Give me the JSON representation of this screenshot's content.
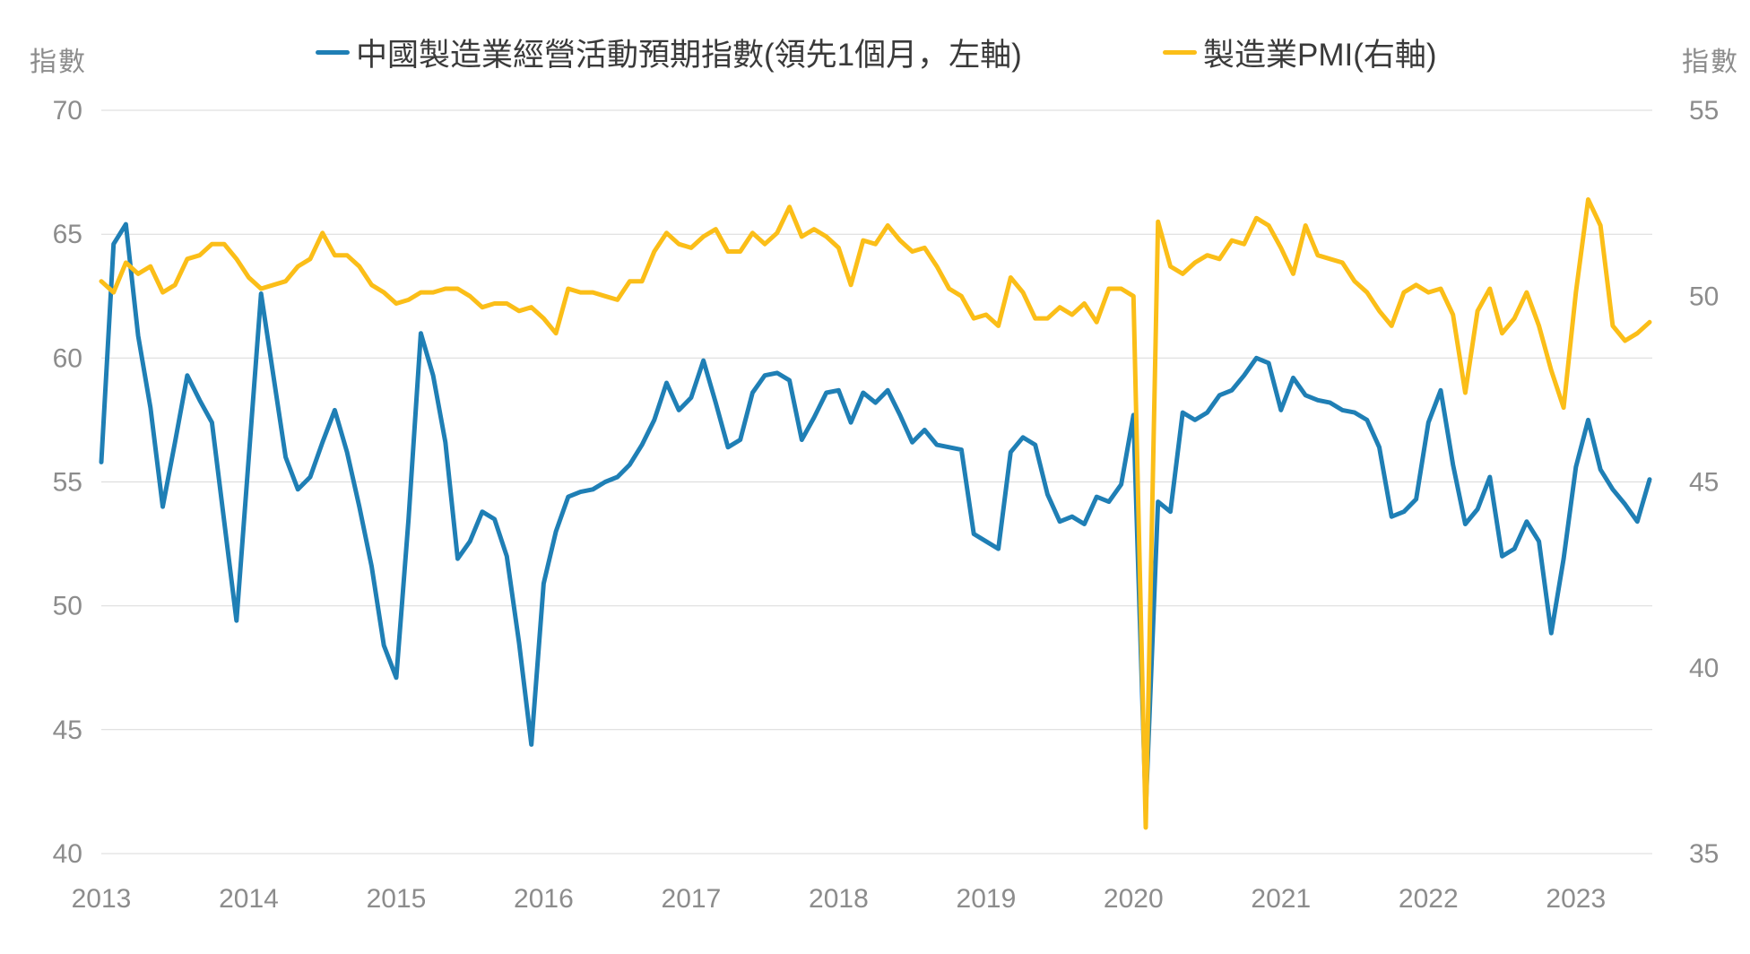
{
  "chart": {
    "left_axis_unit": "指數",
    "right_axis_unit": "指數"
  },
  "legend": [
    {
      "label": "中國製造業經營活動預期指數(領先1個月，左軸)",
      "color": "#1f7fb5"
    },
    {
      "label": "製造業PMI(右軸)",
      "color": "#fbbe18"
    }
  ],
  "colors": {
    "blue_line": "#1f7fb5",
    "yellow_line": "#fbbe18",
    "gridline": "#d9d9d9",
    "tick_text": "#8c8c8c",
    "legend_text": "#3a3a3a",
    "background": "#ffffff"
  },
  "chart_data": {
    "type": "line",
    "title": "",
    "xlabel": "",
    "x_tick_labels": [
      "2013",
      "2014",
      "2015",
      "2016",
      "2017",
      "2018",
      "2019",
      "2020",
      "2021",
      "2022",
      "2023"
    ],
    "x_frequency": "monthly",
    "x_range": [
      "2013-01",
      "2023-07"
    ],
    "grid": "horizontal",
    "legend_position": "top",
    "left_axis": {
      "unit": "指數",
      "min": 40,
      "max": 70,
      "step": 5,
      "ticks": [
        40,
        45,
        50,
        55,
        60,
        65,
        70
      ]
    },
    "right_axis": {
      "unit": "指數",
      "min": 35,
      "max": 55,
      "step": 5,
      "ticks": [
        35,
        40,
        45,
        50,
        55
      ]
    },
    "series": [
      {
        "name": "中國製造業經營活動預期指數(領先1個月，左軸)",
        "axis": "left",
        "color": "#1f7fb5",
        "values": [
          55.8,
          64.6,
          65.4,
          60.9,
          58.0,
          54.0,
          56.6,
          59.3,
          58.3,
          57.4,
          53.4,
          49.4,
          56.0,
          62.6,
          59.3,
          56.0,
          54.7,
          55.2,
          56.6,
          57.9,
          56.2,
          54.0,
          51.6,
          48.4,
          47.1,
          53.5,
          61.0,
          59.3,
          56.6,
          51.9,
          52.6,
          53.8,
          53.5,
          52.0,
          48.5,
          44.4,
          50.9,
          53.0,
          54.4,
          54.6,
          54.7,
          55.0,
          55.2,
          55.7,
          56.5,
          57.5,
          59.0,
          57.9,
          58.4,
          59.9,
          58.2,
          56.4,
          56.7,
          58.6,
          59.3,
          59.4,
          59.1,
          56.7,
          57.6,
          58.6,
          58.7,
          57.4,
          58.6,
          58.2,
          58.7,
          57.7,
          56.6,
          57.1,
          56.5,
          56.4,
          56.3,
          52.9,
          52.6,
          52.3,
          56.2,
          56.8,
          56.5,
          54.5,
          53.4,
          53.6,
          53.3,
          54.4,
          54.2,
          54.9,
          57.7,
          41.8,
          54.2,
          53.8,
          57.8,
          57.5,
          57.8,
          58.5,
          58.7,
          59.3,
          60.0,
          59.8,
          57.9,
          59.2,
          58.5,
          58.3,
          58.2,
          57.9,
          57.8,
          57.5,
          56.4,
          53.6,
          53.8,
          54.3,
          57.4,
          58.7,
          55.7,
          53.3,
          53.9,
          55.2,
          52.0,
          52.3,
          53.4,
          52.6,
          48.9,
          51.9,
          55.6,
          57.5,
          55.5,
          54.7,
          54.1,
          53.4,
          55.1
        ]
      },
      {
        "name": "製造業PMI(右軸)",
        "axis": "right",
        "color": "#fbbe18",
        "values": [
          50.4,
          50.1,
          50.9,
          50.6,
          50.8,
          50.1,
          50.3,
          51.0,
          51.1,
          51.4,
          51.4,
          51.0,
          50.5,
          50.2,
          50.3,
          50.4,
          50.8,
          51.0,
          51.7,
          51.1,
          51.1,
          50.8,
          50.3,
          50.1,
          49.8,
          49.9,
          50.1,
          50.1,
          50.2,
          50.2,
          50.0,
          49.7,
          49.8,
          49.8,
          49.6,
          49.7,
          49.4,
          49.0,
          50.2,
          50.1,
          50.1,
          50.0,
          49.9,
          50.4,
          50.4,
          51.2,
          51.7,
          51.4,
          51.3,
          51.6,
          51.8,
          51.2,
          51.2,
          51.7,
          51.4,
          51.7,
          52.4,
          51.6,
          51.8,
          51.6,
          51.3,
          50.3,
          51.5,
          51.4,
          51.9,
          51.5,
          51.2,
          51.3,
          50.8,
          50.2,
          50.0,
          49.4,
          49.5,
          49.2,
          50.5,
          50.1,
          49.4,
          49.4,
          49.7,
          49.5,
          49.8,
          49.3,
          50.2,
          50.2,
          50.0,
          35.7,
          52.0,
          50.8,
          50.6,
          50.9,
          51.1,
          51.0,
          51.5,
          51.4,
          52.1,
          51.9,
          51.3,
          50.6,
          51.9,
          51.1,
          51.0,
          50.9,
          50.4,
          50.1,
          49.6,
          49.2,
          50.1,
          50.3,
          50.1,
          50.2,
          49.5,
          47.4,
          49.6,
          50.2,
          49.0,
          49.4,
          50.1,
          49.2,
          48.0,
          47.0,
          50.1,
          52.6,
          51.9,
          49.2,
          48.8,
          49.0,
          49.3
        ]
      }
    ]
  }
}
